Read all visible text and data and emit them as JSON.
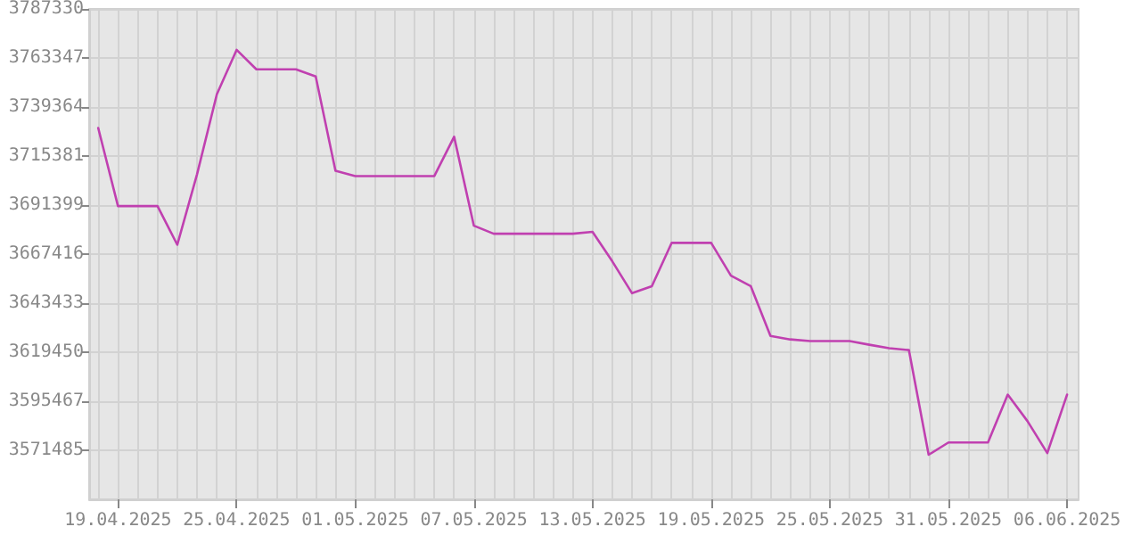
{
  "chart_data": {
    "type": "line",
    "x": [
      "2025-04-18",
      "2025-04-19",
      "2025-04-20",
      "2025-04-21",
      "2025-04-22",
      "2025-04-23",
      "2025-04-24",
      "2025-04-25",
      "2025-04-26",
      "2025-04-27",
      "2025-04-28",
      "2025-04-29",
      "2025-04-30",
      "2025-05-01",
      "2025-05-02",
      "2025-05-03",
      "2025-05-04",
      "2025-05-05",
      "2025-05-06",
      "2025-05-07",
      "2025-05-08",
      "2025-05-09",
      "2025-05-10",
      "2025-05-11",
      "2025-05-12",
      "2025-05-13",
      "2025-05-14",
      "2025-05-15",
      "2025-05-16",
      "2025-05-17",
      "2025-05-18",
      "2025-05-19",
      "2025-05-20",
      "2025-05-21",
      "2025-05-22",
      "2025-05-23",
      "2025-05-24",
      "2025-05-25",
      "2025-05-26",
      "2025-05-27",
      "2025-05-28",
      "2025-05-29",
      "2025-05-30",
      "2025-05-31",
      "2025-06-01",
      "2025-06-02",
      "2025-06-03",
      "2025-06-04",
      "2025-06-05",
      "2025-06-06"
    ],
    "series": [
      {
        "color": "#c040b0",
        "values": [
          3729100,
          3690900,
          3690900,
          3690900,
          3672000,
          3706500,
          3745600,
          3767300,
          3757800,
          3757800,
          3757800,
          3754300,
          3708200,
          3705600,
          3705600,
          3705600,
          3705600,
          3705600,
          3724800,
          3681300,
          3677400,
          3677400,
          3677400,
          3677400,
          3677400,
          3678300,
          3663900,
          3648300,
          3651700,
          3672900,
          3672900,
          3672900,
          3656900,
          3651800,
          3627400,
          3625700,
          3624900,
          3624900,
          3624900,
          3623100,
          3621400,
          3620500,
          3569300,
          3575300,
          3575300,
          3575300,
          3598700,
          3585700,
          3570100,
          3598700
        ]
      }
    ],
    "xlim": [
      "2025-04-17T13:00",
      "2025-06-06T14:00"
    ],
    "xticks": [
      {
        "value": "2025-04-19",
        "label": "19.04.2025"
      },
      {
        "value": "2025-04-25",
        "label": "25.04.2025"
      },
      {
        "value": "2025-05-01",
        "label": "01.05.2025"
      },
      {
        "value": "2025-05-07",
        "label": "07.05.2025"
      },
      {
        "value": "2025-05-13",
        "label": "13.05.2025"
      },
      {
        "value": "2025-05-19",
        "label": "19.05.2025"
      },
      {
        "value": "2025-05-25",
        "label": "25.05.2025"
      },
      {
        "value": "2025-05-31",
        "label": "31.05.2025"
      },
      {
        "value": "2025-06-06",
        "label": "06.06.2025"
      }
    ],
    "ylim": [
      3547502,
      3787330
    ],
    "yticks": [
      3571485,
      3595467,
      3619450,
      3643433,
      3667416,
      3691399,
      3715381,
      3739364,
      3763347,
      3787330
    ],
    "grid": true,
    "marker": "none",
    "line_style": "solid"
  }
}
